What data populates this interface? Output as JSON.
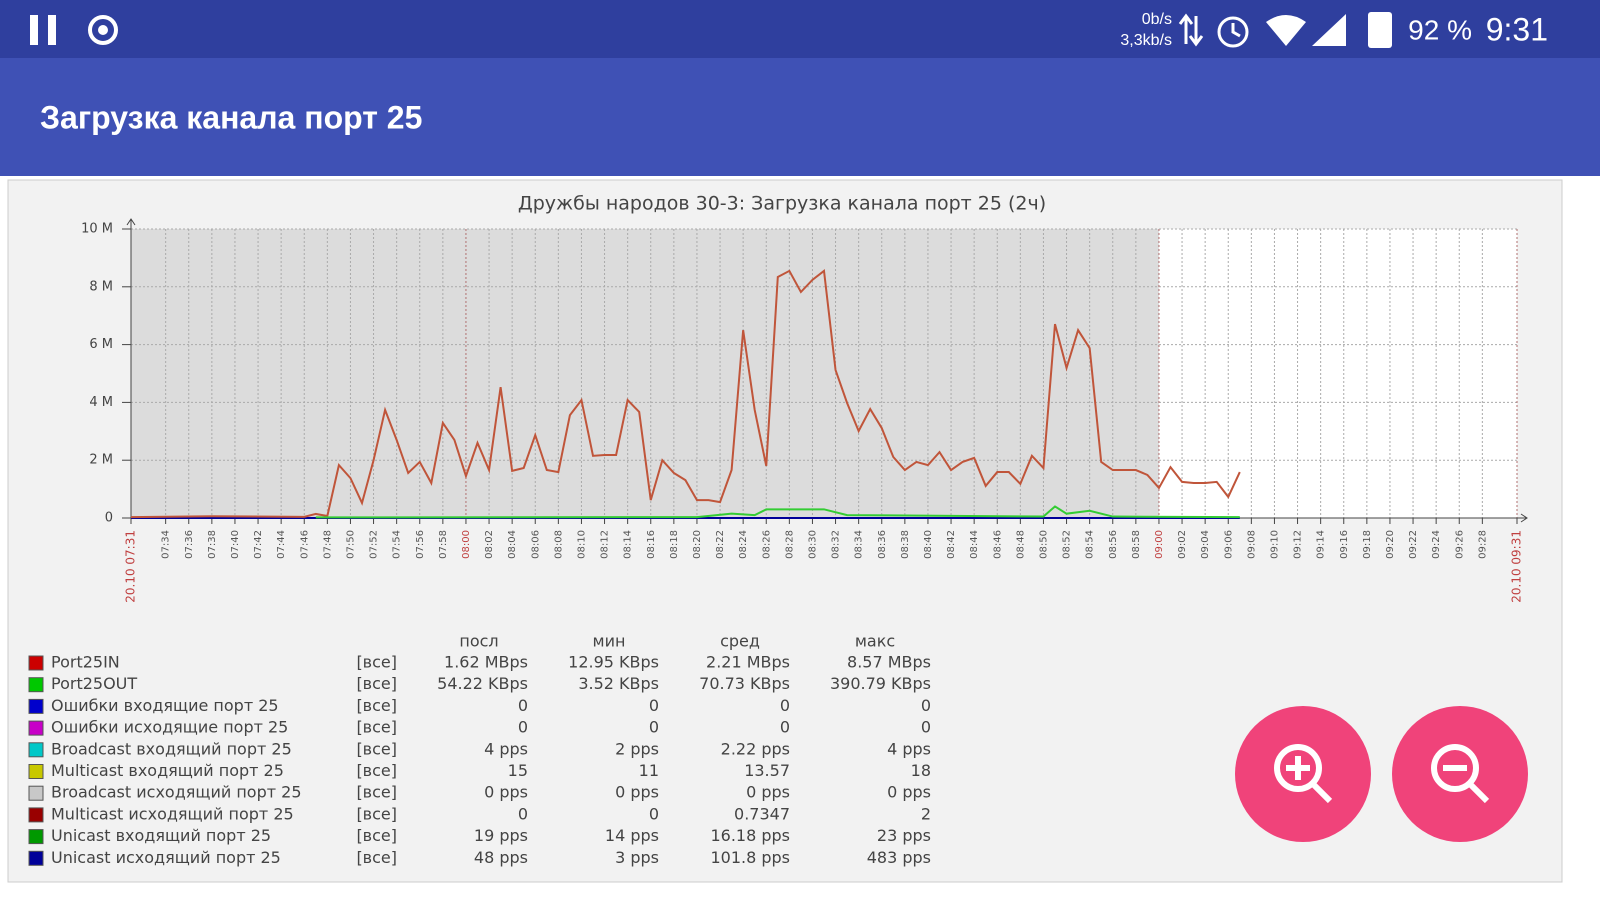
{
  "status_bar": {
    "rate_down": "0b/s",
    "rate_up": "3,3kb/s",
    "battery": "92 %",
    "time": "9:31"
  },
  "app_bar": {
    "title": "Загрузка канала порт 25"
  },
  "chart_data": {
    "type": "line",
    "title": "Дружбы народов 30-3: Загрузка канала порт 25 (2ч)",
    "xlim": [
      "07:31",
      "09:31"
    ],
    "ylim": [
      0,
      10
    ],
    "yticks": [
      0,
      {
        "value": 2,
        "label": "2 M"
      },
      {
        "value": 4,
        "label": "4 M"
      },
      {
        "value": 6,
        "label": "6 M"
      },
      {
        "value": 8,
        "label": "8 M"
      },
      {
        "value": 10,
        "label": "10 M"
      }
    ],
    "xticks": [
      {
        "value": "07:31",
        "label": "20.10 07:31"
      },
      "07:34",
      "07:36",
      "07:38",
      "07:40",
      "07:42",
      "07:44",
      "07:46",
      "07:48",
      "07:50",
      "07:52",
      "07:54",
      "07:56",
      "07:58",
      "08:00",
      "08:02",
      "08:04",
      "08:06",
      "08:08",
      "08:10",
      "08:12",
      "08:14",
      "08:16",
      "08:18",
      "08:20",
      "08:22",
      "08:24",
      "08:26",
      "08:28",
      "08:30",
      "08:32",
      "08:34",
      "08:36",
      "08:38",
      "08:40",
      "08:42",
      "08:44",
      "08:46",
      "08:48",
      "08:50",
      "08:52",
      "08:54",
      "08:56",
      "08:58",
      "09:00",
      "09:02",
      "09:04",
      "09:06",
      "09:08",
      "09:10",
      "09:12",
      "09:14",
      "09:16",
      "09:18",
      "09:20",
      "09:22",
      "09:24",
      "09:26",
      "09:28",
      {
        "value": "09:31",
        "label": "20.10 09:31"
      }
    ],
    "grid": true,
    "history_until": "09:00",
    "series": [
      {
        "color": "#c0553a",
        "x": [
          "07:31",
          "07:38",
          "07:46",
          "07:47",
          "07:48",
          "07:49",
          "07:50",
          "07:51",
          "07:52",
          "07:53",
          "07:54",
          "07:55",
          "07:56",
          "07:57",
          "07:58",
          "07:59",
          "08:00",
          "08:01",
          "08:02",
          "08:03",
          "08:04",
          "08:05",
          "08:06",
          "08:07",
          "08:08",
          "08:09",
          "08:10",
          "08:11",
          "08:12",
          "08:13",
          "08:14",
          "08:15",
          "08:16",
          "08:17",
          "08:18",
          "08:19",
          "08:20",
          "08:21",
          "08:22",
          "08:23",
          "08:24",
          "08:25",
          "08:26",
          "08:27",
          "08:28",
          "08:29",
          "08:30",
          "08:31",
          "08:32",
          "08:33",
          "08:34",
          "08:35",
          "08:36",
          "08:37",
          "08:38",
          "08:39",
          "08:40",
          "08:41",
          "08:42",
          "08:43",
          "08:44",
          "08:45",
          "08:46",
          "08:47",
          "08:48",
          "08:49",
          "08:50",
          "08:51",
          "08:52",
          "08:53",
          "08:54",
          "08:55",
          "08:56",
          "08:57",
          "08:58",
          "08:59",
          "09:00",
          "09:01",
          "09:02",
          "09:03",
          "09:04",
          "09:05",
          "09:06",
          "09:07"
        ],
        "values": [
          0.03,
          0.06,
          0.04,
          0.14,
          0.07,
          1.83,
          1.38,
          0.52,
          2.0,
          3.74,
          2.7,
          1.56,
          1.94,
          1.21,
          3.29,
          2.7,
          1.45,
          2.6,
          1.66,
          4.53,
          1.63,
          1.73,
          2.87,
          1.66,
          1.59,
          3.56,
          4.08,
          2.15,
          2.18,
          2.18,
          4.08,
          3.67,
          0.62,
          2.0,
          1.56,
          1.31,
          0.62,
          0.62,
          0.55,
          1.66,
          6.5,
          3.74,
          1.8,
          8.34,
          8.55,
          7.82,
          8.24,
          8.55,
          5.12,
          3.98,
          3.01,
          3.77,
          3.11,
          2.11,
          1.66,
          1.94,
          1.83,
          2.28,
          1.66,
          1.94,
          2.08,
          1.11,
          1.59,
          1.59,
          1.18,
          2.15,
          1.73,
          6.71,
          5.19,
          6.5,
          5.88,
          1.94,
          1.66,
          1.66,
          1.66,
          1.49,
          1.04,
          1.76,
          1.25,
          1.21,
          1.21,
          1.25,
          0.73,
          1.59
        ]
      },
      {
        "color": "#33cc33",
        "x": [
          "07:47",
          "08:20",
          "08:23",
          "08:25",
          "08:26",
          "08:31",
          "08:33",
          "08:50",
          "08:51",
          "08:52",
          "08:54",
          "08:56",
          "09:07"
        ],
        "values": [
          0.02,
          0.03,
          0.15,
          0.1,
          0.3,
          0.3,
          0.1,
          0.05,
          0.4,
          0.15,
          0.25,
          0.05,
          0.03
        ]
      }
    ]
  },
  "legend": {
    "columns": [
      "посл",
      "мин",
      "сред",
      "макс"
    ],
    "rows": [
      {
        "color": "#cc0000",
        "name": "Port25IN",
        "scope": "[все]",
        "values": [
          "1.62 MBps",
          "12.95 KBps",
          "2.21 MBps",
          "8.57 MBps"
        ]
      },
      {
        "color": "#00c800",
        "name": "Port25OUT",
        "scope": "[все]",
        "values": [
          "54.22 KBps",
          "3.52 KBps",
          "70.73 KBps",
          "390.79 KBps"
        ]
      },
      {
        "color": "#0000cc",
        "name": "Ошибки входящие порт 25",
        "scope": "[все]",
        "values": [
          "0",
          "0",
          "0",
          "0"
        ]
      },
      {
        "color": "#c800c8",
        "name": "Ошибки исходящие порт 25",
        "scope": "[все]",
        "values": [
          "0",
          "0",
          "0",
          "0"
        ]
      },
      {
        "color": "#00c8c8",
        "name": "Broadcast входящий порт 25",
        "scope": "[все]",
        "values": [
          "4 pps",
          "2 pps",
          "2.22 pps",
          "4 pps"
        ]
      },
      {
        "color": "#c8c800",
        "name": "Multicast входящий порт 25",
        "scope": "[все]",
        "values": [
          "15",
          "11",
          "13.57",
          "18"
        ]
      },
      {
        "color": "#c8c8c8",
        "name": "Broadcast исходящий порт 25",
        "scope": "[все]",
        "values": [
          "0 pps",
          "0 pps",
          "0 pps",
          "0 pps"
        ]
      },
      {
        "color": "#990000",
        "name": "Multicast исходящий порт 25",
        "scope": "[все]",
        "values": [
          "0",
          "0",
          "0.7347",
          "2"
        ]
      },
      {
        "color": "#009900",
        "name": "Unicast входящий порт 25",
        "scope": "[все]",
        "values": [
          "19 pps",
          "14 pps",
          "16.18 pps",
          "23 pps"
        ]
      },
      {
        "color": "#000099",
        "name": "Unicast исходящий порт 25",
        "scope": "[все]",
        "values": [
          "48 pps",
          "3 pps",
          "101.8 pps",
          "483 pps"
        ]
      }
    ]
  }
}
